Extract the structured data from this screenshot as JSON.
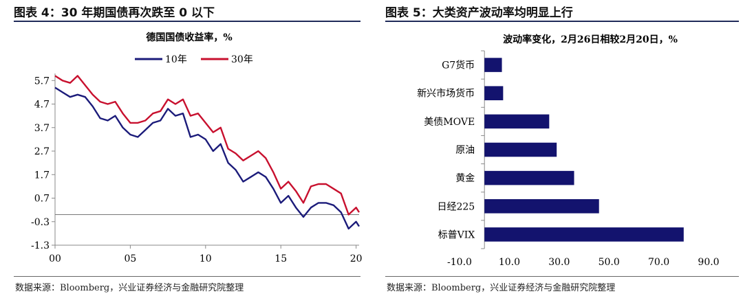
{
  "left_panel": {
    "figure_title": "图表 4：30 年期国债再次跌至 0 以下",
    "source": "数据来源：Bloomberg，兴业证券经济与金融研究院整理"
  },
  "right_panel": {
    "figure_title": "图表 5：大类资产波动率均明显上行",
    "source": "数据来源：Bloomberg，兴业证券经济与金融研究院整理"
  },
  "colors": {
    "navy": "#1b1b7a",
    "red": "#c8102e",
    "bar": "#13136e"
  },
  "chart_data": [
    {
      "type": "line",
      "title": "德国国债收益率，%",
      "xlabel": "",
      "ylabel": "",
      "x_range": [
        2000,
        2020.2
      ],
      "ylim": [
        -1.3,
        6.0
      ],
      "y_ticks": [
        -1.3,
        -0.3,
        0.7,
        1.7,
        2.7,
        3.7,
        4.7,
        5.7
      ],
      "y_tick_labels": [
        "-1.3",
        "-0.3",
        "0.7",
        "1.7",
        "2.7",
        "3.7",
        "4.7",
        "5.7"
      ],
      "x_ticks": [
        2000,
        2005,
        2010,
        2015,
        2020
      ],
      "x_tick_labels": [
        "00",
        "05",
        "10",
        "15",
        "20"
      ],
      "zero_line": 0,
      "grid": false,
      "legend_position": "top",
      "series": [
        {
          "name": "10年",
          "color": "#1b1b7a",
          "x": [
            2000.0,
            2000.5,
            2001.0,
            2001.5,
            2002.0,
            2002.5,
            2003.0,
            2003.5,
            2004.0,
            2004.5,
            2005.0,
            2005.5,
            2006.0,
            2006.5,
            2007.0,
            2007.5,
            2008.0,
            2008.5,
            2009.0,
            2009.5,
            2010.0,
            2010.5,
            2011.0,
            2011.5,
            2012.0,
            2012.5,
            2013.0,
            2013.5,
            2014.0,
            2014.5,
            2015.0,
            2015.5,
            2016.0,
            2016.5,
            2017.0,
            2017.5,
            2018.0,
            2018.5,
            2019.0,
            2019.5,
            2020.0,
            2020.2
          ],
          "values": [
            5.4,
            5.2,
            5.0,
            5.1,
            5.0,
            4.6,
            4.1,
            4.0,
            4.2,
            3.7,
            3.4,
            3.3,
            3.6,
            3.9,
            4.0,
            4.5,
            4.2,
            4.3,
            3.3,
            3.4,
            3.2,
            2.7,
            3.0,
            2.2,
            1.9,
            1.4,
            1.6,
            1.8,
            1.6,
            1.1,
            0.5,
            0.8,
            0.3,
            -0.1,
            0.3,
            0.5,
            0.5,
            0.4,
            0.1,
            -0.6,
            -0.3,
            -0.5
          ]
        },
        {
          "name": "30年",
          "color": "#c8102e",
          "x": [
            2000.0,
            2000.5,
            2001.0,
            2001.5,
            2002.0,
            2002.5,
            2003.0,
            2003.5,
            2004.0,
            2004.5,
            2005.0,
            2005.5,
            2006.0,
            2006.5,
            2007.0,
            2007.5,
            2008.0,
            2008.5,
            2009.0,
            2009.5,
            2010.0,
            2010.5,
            2011.0,
            2011.5,
            2012.0,
            2012.5,
            2013.0,
            2013.5,
            2014.0,
            2014.5,
            2015.0,
            2015.5,
            2016.0,
            2016.5,
            2017.0,
            2017.5,
            2018.0,
            2018.5,
            2019.0,
            2019.5,
            2020.0,
            2020.2
          ],
          "values": [
            5.9,
            5.7,
            5.6,
            5.9,
            5.5,
            5.1,
            4.8,
            4.7,
            4.8,
            4.3,
            3.9,
            3.9,
            4.0,
            4.3,
            4.4,
            4.9,
            4.7,
            4.9,
            4.2,
            4.3,
            3.9,
            3.5,
            3.7,
            2.8,
            2.6,
            2.3,
            2.5,
            2.7,
            2.4,
            1.8,
            1.1,
            1.4,
            1.0,
            0.5,
            1.2,
            1.3,
            1.3,
            1.1,
            0.9,
            0.0,
            0.3,
            0.1
          ]
        }
      ]
    },
    {
      "type": "bar",
      "orientation": "horizontal",
      "title": "波动率变化，2月26日相较2月20日，%",
      "xlabel": "",
      "ylabel": "",
      "categories": [
        "G7货币",
        "新兴市场货币",
        "美债MOVE",
        "原油",
        "黄金",
        "日经225",
        "标普VIX"
      ],
      "values": [
        7.0,
        7.5,
        26.0,
        29.0,
        36.0,
        46.0,
        80.0
      ],
      "xlim": [
        -10,
        90
      ],
      "x_ticks": [
        -10,
        10,
        30,
        50,
        70,
        90
      ],
      "x_tick_labels": [
        "-10.0",
        "10.0",
        "30.0",
        "50.0",
        "70.0",
        "90.0"
      ],
      "grid": false,
      "color": "#13136e"
    }
  ]
}
